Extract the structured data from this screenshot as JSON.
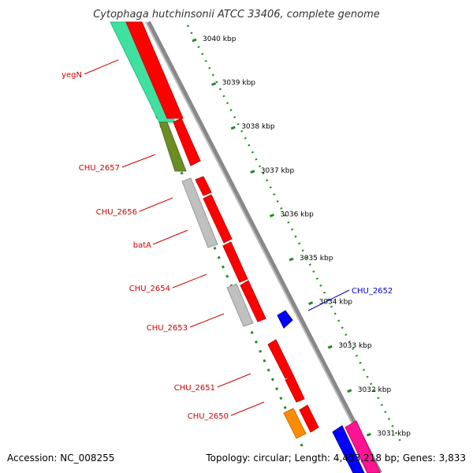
{
  "title": "Cytophaga hutchinsonii ATCC 33406, complete genome",
  "accession": "Accession: NC_008255",
  "summary": "Topology: circular; Length: 4,433,218 bp; Genes: 3,833",
  "colors": {
    "forward_cds": "#ff0000",
    "reverse_cds": "#ff0000",
    "neutral_gene": "#c0c0c0",
    "olive_gene": "#6b8e23",
    "orange_gene": "#ff8c00",
    "blue_gene": "#0000ff",
    "pink_gene": "#ff1493",
    "teal_gene": "#40e0a0",
    "label_red": "#cc0000",
    "label_blue": "#0000cc",
    "tick_green": "#228b22",
    "backbone": "#888888"
  },
  "ticks": [
    "3040 kbp",
    "3039 kbp",
    "3038 kbp",
    "3037 kbp",
    "3036 kbp",
    "3035 kbp",
    "3034 kbp",
    "3033 kbp",
    "3032 kbp",
    "3031 kbp"
  ],
  "labels": [
    {
      "text": "yegN",
      "color": "red"
    },
    {
      "text": "CHU_2657",
      "color": "red"
    },
    {
      "text": "CHU_2656",
      "color": "red"
    },
    {
      "text": "batA",
      "color": "red"
    },
    {
      "text": "CHU_2654",
      "color": "red"
    },
    {
      "text": "CHU_2653",
      "color": "red"
    },
    {
      "text": "CHU_2651",
      "color": "red"
    },
    {
      "text": "CHU_2650",
      "color": "red"
    },
    {
      "text": "CHU_2652",
      "color": "blue"
    }
  ]
}
